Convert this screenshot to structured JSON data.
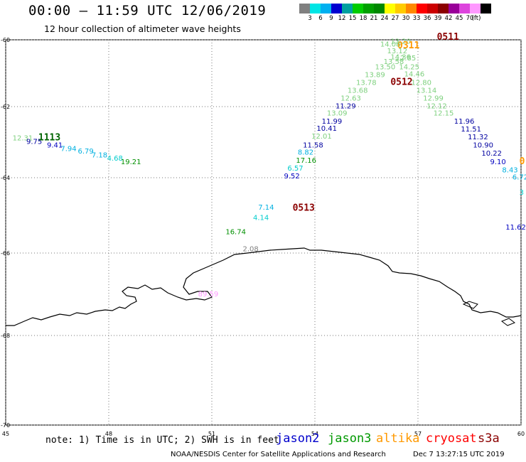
{
  "header": {
    "title": "00:00 – 11:59 UTC 12/06/2019",
    "subtitle": "12 hour collection of altimeter wave heights"
  },
  "color_scale": {
    "colors": [
      "#808080",
      "#00e5e5",
      "#00b0f0",
      "#0000d0",
      "#00a0a0",
      "#00cc00",
      "#00a000",
      "#008800",
      "#ffff00",
      "#ffcc00",
      "#ff8800",
      "#ff0000",
      "#cc0000",
      "#8b0000",
      "#990099",
      "#dd44dd",
      "#ff99ff",
      "#000000"
    ],
    "ticks": [
      "3",
      "6",
      "9",
      "12",
      "15",
      "18",
      "21",
      "24",
      "27",
      "30",
      "33",
      "36",
      "39",
      "42",
      "45",
      "70"
    ],
    "unit": "(ft)"
  },
  "axes": {
    "lon_ticks": [
      "45",
      "48",
      "51",
      "54",
      "57",
      "60"
    ],
    "lat_ticks": [
      "-60",
      "-62",
      "-64",
      "-66",
      "-68",
      "-70"
    ]
  },
  "map_data": {
    "lon_range": [
      45,
      60
    ],
    "lat_range": [
      -70,
      -60
    ],
    "grid": "dotted",
    "labels": [
      {
        "lon": 45.2,
        "lat": -62.95,
        "text": "12.31",
        "color": "#7ed07e"
      },
      {
        "lon": 45.6,
        "lat": -63.05,
        "text": "9.75",
        "color": "#0000a0"
      },
      {
        "lon": 45.95,
        "lat": -62.95,
        "text": "1113",
        "color": "#006400",
        "kind": "time"
      },
      {
        "lon": 46.2,
        "lat": -63.15,
        "text": "9.41",
        "color": "#0000c0"
      },
      {
        "lon": 46.6,
        "lat": -63.25,
        "text": "7.94",
        "color": "#00b0e0"
      },
      {
        "lon": 47.1,
        "lat": -63.32,
        "text": "6.79",
        "color": "#00b0e0"
      },
      {
        "lon": 47.5,
        "lat": -63.43,
        "text": "7.18",
        "color": "#00b0e0"
      },
      {
        "lon": 47.95,
        "lat": -63.52,
        "text": "4.68",
        "color": "#00cccc"
      },
      {
        "lon": 48.35,
        "lat": -63.62,
        "text": "19.21",
        "color": "#009000"
      },
      {
        "lon": 56.2,
        "lat": -60.12,
        "text": "13.20",
        "color": "#7ed07e"
      },
      {
        "lon": 57.55,
        "lat": -60.0,
        "text": "0511",
        "color": "#8b0000",
        "kind": "time"
      },
      {
        "lon": 56.4,
        "lat": -60.25,
        "text": "0311",
        "color": "#ff9900",
        "kind": "time"
      },
      {
        "lon": 55.9,
        "lat": -60.2,
        "text": "14.08",
        "color": "#7ed07e"
      },
      {
        "lon": 56.1,
        "lat": -60.4,
        "text": "13.12",
        "color": "#7ed07e"
      },
      {
        "lon": 56.2,
        "lat": -60.58,
        "text": "14.36",
        "color": "#7ed07e"
      },
      {
        "lon": 56.0,
        "lat": -60.72,
        "text": "13.58",
        "color": "#7ed07e"
      },
      {
        "lon": 56.35,
        "lat": -60.62,
        "text": "12.85",
        "color": "#7ed07e"
      },
      {
        "lon": 55.75,
        "lat": -60.88,
        "text": "13.50",
        "color": "#7ed07e"
      },
      {
        "lon": 56.45,
        "lat": -60.88,
        "text": "14.25",
        "color": "#7ed07e"
      },
      {
        "lon": 55.45,
        "lat": -61.12,
        "text": "13.89",
        "color": "#7ed07e"
      },
      {
        "lon": 56.6,
        "lat": -61.1,
        "text": "14.46",
        "color": "#7ed07e"
      },
      {
        "lon": 55.2,
        "lat": -61.35,
        "text": "13.78",
        "color": "#7ed07e"
      },
      {
        "lon": 56.2,
        "lat": -61.35,
        "text": "0512",
        "color": "#8b0000",
        "kind": "time"
      },
      {
        "lon": 56.8,
        "lat": -61.35,
        "text": "12.80",
        "color": "#7ed07e"
      },
      {
        "lon": 54.95,
        "lat": -61.58,
        "text": "13.68",
        "color": "#7ed07e"
      },
      {
        "lon": 56.95,
        "lat": -61.58,
        "text": "13.14",
        "color": "#7ed07e"
      },
      {
        "lon": 54.75,
        "lat": -61.82,
        "text": "12.63",
        "color": "#7ed07e"
      },
      {
        "lon": 57.15,
        "lat": -61.82,
        "text": "12.99",
        "color": "#7ed07e"
      },
      {
        "lon": 54.6,
        "lat": -62.05,
        "text": "11.29",
        "color": "#0000a0"
      },
      {
        "lon": 57.25,
        "lat": -62.05,
        "text": "12.12",
        "color": "#7ed07e"
      },
      {
        "lon": 54.35,
        "lat": -62.25,
        "text": "13.09",
        "color": "#7ed07e"
      },
      {
        "lon": 57.45,
        "lat": -62.25,
        "text": "12.15",
        "color": "#7ed07e"
      },
      {
        "lon": 54.2,
        "lat": -62.48,
        "text": "11.99",
        "color": "#0000a0"
      },
      {
        "lon": 58.05,
        "lat": -62.48,
        "text": "11.96",
        "color": "#0000a0"
      },
      {
        "lon": 54.05,
        "lat": -62.68,
        "text": "10.41",
        "color": "#0000a0"
      },
      {
        "lon": 58.25,
        "lat": -62.7,
        "text": "11.51",
        "color": "#0000a0"
      },
      {
        "lon": 53.9,
        "lat": -62.9,
        "text": "12.01",
        "color": "#7ed07e"
      },
      {
        "lon": 58.45,
        "lat": -62.92,
        "text": "11.32",
        "color": "#0000a0"
      },
      {
        "lon": 53.65,
        "lat": -63.15,
        "text": "11.58",
        "color": "#0000a0"
      },
      {
        "lon": 58.6,
        "lat": -63.15,
        "text": "10.90",
        "color": "#0000a0"
      },
      {
        "lon": 53.5,
        "lat": -63.35,
        "text": "8.82",
        "color": "#00b0e0"
      },
      {
        "lon": 58.85,
        "lat": -63.38,
        "text": "10.22",
        "color": "#0000a0"
      },
      {
        "lon": 53.45,
        "lat": -63.58,
        "text": "17.16",
        "color": "#009000"
      },
      {
        "lon": 59.1,
        "lat": -63.62,
        "text": "9.10",
        "color": "#0000c0"
      },
      {
        "lon": 59.95,
        "lat": -63.62,
        "text": "0",
        "color": "#ff9900",
        "kind": "time"
      },
      {
        "lon": 53.2,
        "lat": -63.8,
        "text": "6.57",
        "color": "#00cccc"
      },
      {
        "lon": 59.45,
        "lat": -63.85,
        "text": "8.43",
        "color": "#00b0e0"
      },
      {
        "lon": 53.1,
        "lat": -64.02,
        "text": "9.52",
        "color": "#0000c0"
      },
      {
        "lon": 59.75,
        "lat": -64.05,
        "text": "6.72",
        "color": "#00b0e0"
      },
      {
        "lon": 59.95,
        "lat": -64.45,
        "text": "3",
        "color": "#00cccc"
      },
      {
        "lon": 52.35,
        "lat": -64.85,
        "text": "7.14",
        "color": "#00b0e0"
      },
      {
        "lon": 53.35,
        "lat": -64.88,
        "text": "0513",
        "color": "#8b0000",
        "kind": "time"
      },
      {
        "lon": 52.2,
        "lat": -65.12,
        "text": "4.14",
        "color": "#00cccc"
      },
      {
        "lon": 59.55,
        "lat": -65.38,
        "text": "11.62",
        "color": "#0000c0"
      },
      {
        "lon": 51.4,
        "lat": -65.5,
        "text": "16.74",
        "color": "#009000"
      },
      {
        "lon": 51.9,
        "lat": -65.95,
        "text": "2.08",
        "color": "#808080"
      },
      {
        "lon": 50.6,
        "lat": -67.05,
        "text": "89.59",
        "color": "#ff99ff"
      }
    ]
  },
  "footer": {
    "note": "note: 1) Time is in UTC; 2) SWH is in feet",
    "satellites": [
      {
        "name": "jason2",
        "color": "#0000cc"
      },
      {
        "name": "jason3",
        "color": "#009900"
      },
      {
        "name": "altika",
        "color": "#ff9900"
      },
      {
        "name": "cryosat",
        "color": "#ff0000"
      },
      {
        "name": "s3a",
        "color": "#8b0000"
      }
    ],
    "credit": "NOAA/NESDIS Center for Satellite Applications and Research",
    "timestamp": "Dec  7 13:27:15 UTC 2019"
  }
}
